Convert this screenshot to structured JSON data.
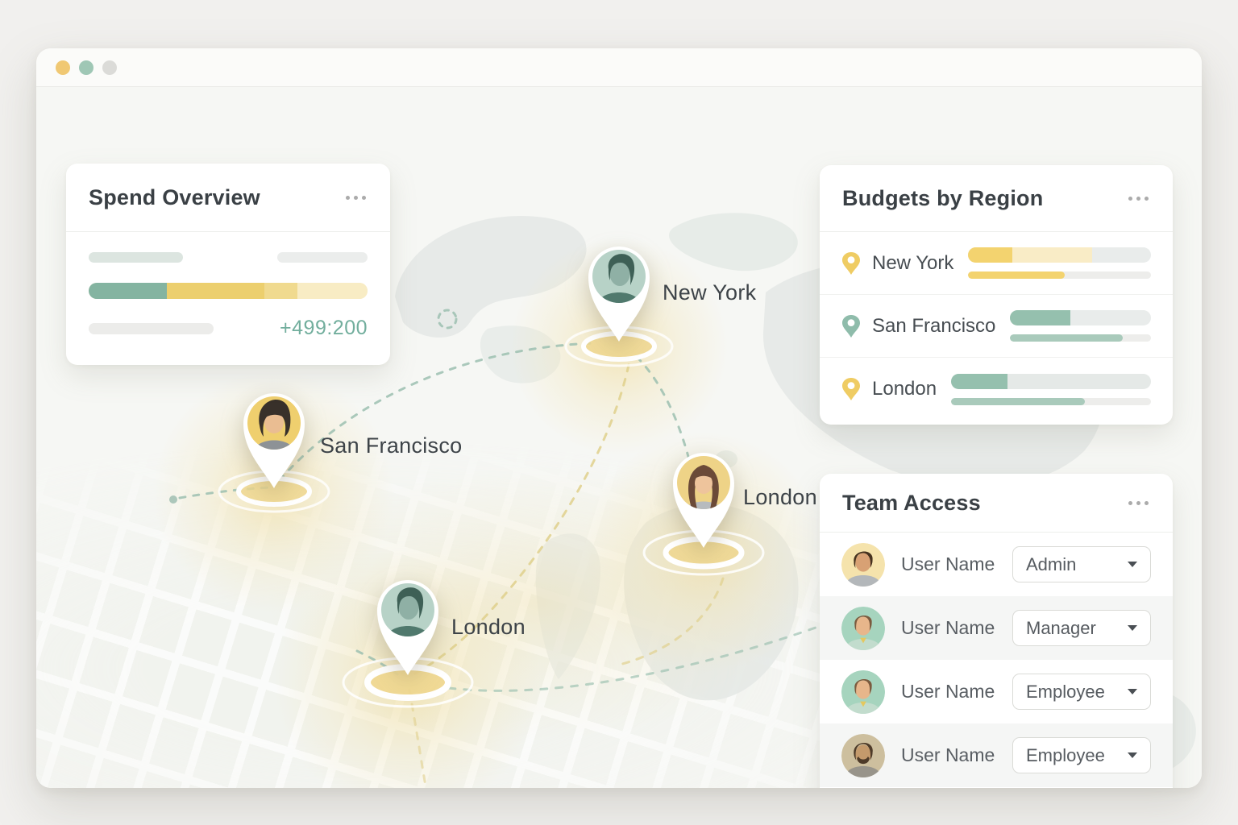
{
  "window": {
    "traffic_lights": [
      {
        "name": "close",
        "color": "#f0c873"
      },
      {
        "name": "minimize",
        "color": "#9fc7b5"
      },
      {
        "name": "zoom",
        "color": "#dbdbd8"
      }
    ]
  },
  "spend_overview": {
    "title": "Spend Overview",
    "delta_label": "+499:200",
    "bar": {
      "segments": [
        {
          "color": "#84b4a1",
          "pct": 28
        },
        {
          "color": "#eccf6e",
          "pct": 35
        },
        {
          "color": "#f0da8f",
          "pct": 12
        },
        {
          "color": "#f8ecc4",
          "pct": 25
        }
      ]
    }
  },
  "map": {
    "pins": [
      {
        "city": "New York"
      },
      {
        "city": "San Francisco"
      },
      {
        "city": "London"
      },
      {
        "city": "London"
      }
    ],
    "route_colors": {
      "teal": "#9cc0b0",
      "yellow": "#e0d08c"
    }
  },
  "budgets": {
    "title": "Budgets by Region",
    "rows": [
      {
        "region": "New York",
        "pin_color": "#efcc63",
        "bar_main": {
          "track": "#e9eceb",
          "segments": [
            {
              "color": "#f3d36f",
              "pct": 24
            },
            {
              "color": "#f9ecc6",
              "pct": 44
            }
          ]
        },
        "bar_sub": {
          "color": "#f3d36f",
          "pct": 53
        }
      },
      {
        "region": "San Francisco",
        "pin_color": "#8fbcab",
        "bar_main": {
          "track": "#e9eceb",
          "segments": [
            {
              "color": "#95c0ae",
              "pct": 43
            }
          ]
        },
        "bar_sub": {
          "color": "#a9cabb",
          "pct": 80
        }
      },
      {
        "region": "London",
        "pin_color": "#efcc63",
        "bar_main": {
          "track": "#e5e9e7",
          "segments": [
            {
              "color": "#95c0ae",
              "pct": 28
            }
          ]
        },
        "bar_sub": {
          "color": "#a9cabb",
          "pct": 67
        }
      }
    ]
  },
  "team": {
    "title": "Team Access",
    "rows": [
      {
        "name": "User Name",
        "role": "Admin"
      },
      {
        "name": "User Name",
        "role": "Manager"
      },
      {
        "name": "User Name",
        "role": "Employee"
      },
      {
        "name": "User Name",
        "role": "Employee"
      }
    ]
  }
}
